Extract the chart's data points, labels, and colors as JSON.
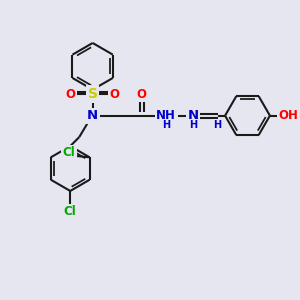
{
  "bg_color": "#e6e6f0",
  "bond_color": "#1a1a1a",
  "bond_width": 1.5,
  "atom_colors": {
    "N": "#0000cc",
    "O": "#ff0000",
    "S": "#cccc00",
    "Cl": "#00aa00",
    "H": "#0000cc",
    "OH": "#ff0000",
    "C": "#1a1a1a"
  },
  "font_size": 8.5
}
